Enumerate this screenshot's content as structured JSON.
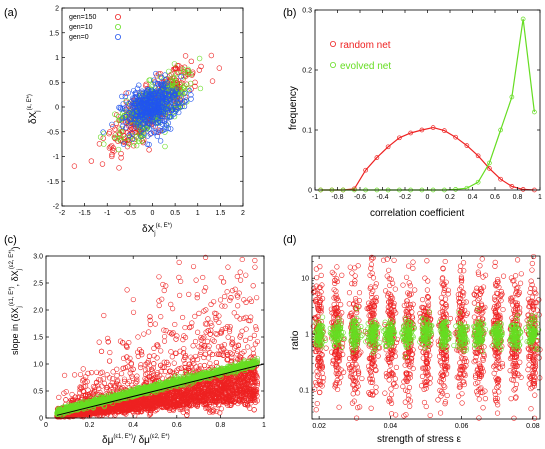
{
  "colors": {
    "red": "#ee2222",
    "green": "#66dd22",
    "blue": "#2255ee",
    "black": "#000000"
  },
  "chart_data": [
    {
      "panel": "(a)",
      "type": "scatter",
      "xlabel": "δX_j^(ε, E*)",
      "ylabel": "δX_j^(ε, E*)",
      "xlim": [
        -2,
        2
      ],
      "ylim": [
        -2,
        2
      ],
      "xticks": [
        "-2",
        "-1.5",
        "-1",
        "-0.5",
        "0",
        "0.5",
        "1",
        "1.5",
        "2"
      ],
      "yticks": [
        "-2",
        "-1.5",
        "-1",
        "-0.5",
        "0",
        "0.5",
        "1",
        "1.5",
        "2"
      ],
      "legend_position": "top-left",
      "series": [
        {
          "name": "gen=150",
          "color": "#ee2222",
          "spread_major": 0.6,
          "spread_minor": 0.18,
          "slope": 0.85,
          "count": 450
        },
        {
          "name": "gen=10",
          "color": "#66dd22",
          "spread_major": 0.45,
          "spread_minor": 0.2,
          "slope": 0.75,
          "count": 350
        },
        {
          "name": "gen=0",
          "color": "#2255ee",
          "spread_major": 0.32,
          "spread_minor": 0.22,
          "slope": 0.5,
          "count": 450
        }
      ]
    },
    {
      "panel": "(b)",
      "type": "line",
      "xlabel": "correlation coefficient",
      "ylabel": "frequency",
      "xlim": [
        -1,
        1
      ],
      "ylim": [
        0,
        0.3
      ],
      "xticks": [
        "-1",
        "-0.8",
        "-0.6",
        "-0.4",
        "-0.2",
        "0",
        "0.2",
        "0.4",
        "0.6",
        "0.8",
        "1"
      ],
      "yticks": [
        "0",
        "0.1",
        "0.2",
        "0.3"
      ],
      "legend_position": "top-left",
      "x": [
        -0.95,
        -0.85,
        -0.75,
        -0.65,
        -0.55,
        -0.45,
        -0.35,
        -0.25,
        -0.15,
        -0.05,
        0.05,
        0.15,
        0.25,
        0.35,
        0.45,
        0.55,
        0.65,
        0.75,
        0.85,
        0.95
      ],
      "series": [
        {
          "name": "random net",
          "color": "#ee2222",
          "values": [
            0,
            0,
            0,
            0.002,
            0.033,
            0.054,
            0.072,
            0.087,
            0.095,
            0.1,
            0.104,
            0.099,
            0.088,
            0.074,
            0.057,
            0.036,
            0.018,
            0.006,
            0.001,
            0
          ]
        },
        {
          "name": "evolved net",
          "color": "#66dd22",
          "values": [
            0,
            0,
            0,
            0,
            0,
            0,
            0,
            0,
            0,
            0,
            0,
            0,
            0.001,
            0.003,
            0.013,
            0.045,
            0.1,
            0.155,
            0.285,
            0.13
          ]
        }
      ]
    },
    {
      "panel": "(c)",
      "type": "scatter",
      "xlabel": "δμ^(ε1, E*) / δμ^(ε2, E*)",
      "ylabel": "slope in (δX_j^(ε1, E*), δX_j^(ε2, E*))",
      "xlim": [
        0,
        1
      ],
      "ylim": [
        0,
        3
      ],
      "xticks": [
        "0",
        "0.2",
        "0.4",
        "0.6",
        "0.8",
        "1"
      ],
      "yticks": [
        "0",
        "0.5",
        "1.0",
        "1.5",
        "2.0",
        "2.5",
        "3.0"
      ],
      "reference_line": {
        "from": [
          0.05,
          0.05
        ],
        "to": [
          1,
          1
        ],
        "color": "#000000"
      },
      "series": [
        {
          "name": "",
          "color": "#ee2222",
          "x_range": [
            0.05,
            0.97
          ],
          "count": 3600
        },
        {
          "name": "",
          "color": "#66dd22",
          "x_range": [
            0.05,
            0.97
          ],
          "count": 1200
        }
      ]
    },
    {
      "panel": "(d)",
      "type": "scatter",
      "xlabel": "strength of stress ε",
      "ylabel": "ratio",
      "xlim": [
        0.018,
        0.082
      ],
      "ylim": [
        0.03,
        25
      ],
      "y_scale": "log",
      "xticks": [
        "0.02",
        "0.04",
        "0.06",
        "0.08"
      ],
      "yticks": [
        "0.1",
        "1",
        "10"
      ],
      "x": [
        0.02,
        0.025,
        0.03,
        0.035,
        0.04,
        0.045,
        0.05,
        0.055,
        0.06,
        0.065,
        0.07,
        0.075,
        0.08
      ],
      "series": [
        {
          "name": "",
          "color": "#ee2222",
          "log10_sd": 0.55,
          "per_column": 140
        },
        {
          "name": "",
          "color": "#66dd22",
          "log10_sd": 0.12,
          "per_column": 80
        }
      ]
    }
  ],
  "labels": {
    "a_panel": "(a)",
    "b_panel": "(b)",
    "c_panel": "(c)",
    "d_panel": "(d)",
    "a_ylabel": "δX",
    "a_ylabel_sub": "j",
    "a_ylabel_sup": "(ε, E*)",
    "a_xlabel": "δX",
    "a_xlabel_sub": "j",
    "a_xlabel_sup": "(ε, E*)",
    "b_xlabel": "correlation coefficient",
    "b_ylabel": "frequency",
    "c_ylabel_a": "slope in (δX",
    "c_ylabel_b": "j",
    "c_ylabel_c": "(ε1, E*)",
    "c_ylabel_d": ", δX",
    "c_ylabel_e": "j",
    "c_ylabel_f": "(ε2, E*)",
    "c_ylabel_g": ")",
    "c_xlabel_a": "δμ",
    "c_xlabel_b": "(ε1, E*)",
    "c_xlabel_c": "/ δμ",
    "c_xlabel_d": "(ε2, E*)",
    "d_xlabel": "strength of stress ε",
    "d_ylabel": "ratio",
    "leg_a1": "gen=150",
    "leg_a2": "gen=10",
    "leg_a3": "gen=0",
    "leg_b1": "random net",
    "leg_b2": "evolved net"
  }
}
